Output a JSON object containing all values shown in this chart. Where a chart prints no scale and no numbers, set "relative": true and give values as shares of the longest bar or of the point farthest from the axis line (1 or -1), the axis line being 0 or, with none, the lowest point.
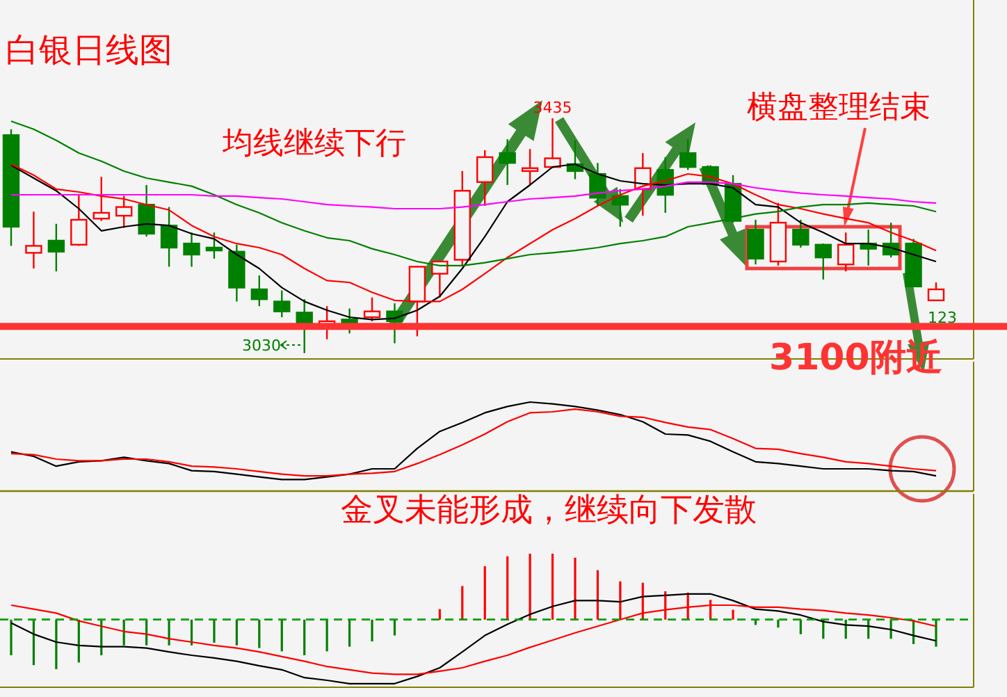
{
  "chart_data": [
    {
      "type": "candlestick",
      "title": "白银日线图",
      "ylim": [
        3020,
        3639
      ],
      "categories": [
        null,
        null,
        null,
        null,
        null,
        null,
        null,
        null,
        null,
        null,
        null,
        null,
        null,
        null,
        null,
        null,
        null,
        null,
        null,
        null,
        null,
        null,
        null,
        null,
        null,
        null,
        null,
        null,
        null,
        null,
        null,
        null,
        null,
        null,
        null,
        null,
        null,
        null,
        null,
        null,
        null,
        null
      ],
      "ohlc": [
        [
          3406,
          3416,
          3215,
          3248
        ],
        [
          3203,
          3274,
          3176,
          3215
        ],
        [
          3224,
          3253,
          3171,
          3205
        ],
        [
          3217,
          3303,
          3215,
          3260
        ],
        [
          3262,
          3334,
          3258,
          3272
        ],
        [
          3267,
          3301,
          3246,
          3282
        ],
        [
          3286,
          3320,
          3231,
          3236
        ],
        [
          3250,
          3282,
          3179,
          3212
        ],
        [
          3219,
          3238,
          3179,
          3200
        ],
        [
          3212,
          3238,
          3193,
          3207
        ],
        [
          3205,
          3217,
          3119,
          3143
        ],
        [
          3140,
          3164,
          3111,
          3123
        ],
        [
          3119,
          3138,
          3092,
          3102
        ],
        [
          3100,
          3123,
          3030,
          3080
        ],
        [
          3080,
          3111,
          3054,
          3085
        ],
        [
          3088,
          3107,
          3064,
          3080
        ],
        [
          3092,
          3126,
          3085,
          3102
        ],
        [
          3102,
          3116,
          3047,
          3085
        ],
        [
          3119,
          3179,
          3059,
          3179
        ],
        [
          3167,
          3188,
          3126,
          3188
        ],
        [
          3191,
          3344,
          3181,
          3310
        ],
        [
          3325,
          3380,
          3284,
          3368
        ],
        [
          3375,
          3399,
          3320,
          3358
        ],
        [
          3344,
          3382,
          3320,
          3349
        ],
        [
          3351,
          3435,
          3349,
          3366
        ],
        [
          3356,
          3397,
          3330,
          3344
        ],
        [
          3339,
          3358,
          3284,
          3298
        ],
        [
          3301,
          3313,
          3248,
          3286
        ],
        [
          3313,
          3375,
          3267,
          3349
        ],
        [
          3346,
          3368,
          3272,
          3303
        ],
        [
          3375,
          3399,
          3346,
          3351
        ],
        [
          3351,
          3354,
          3320,
          3322
        ],
        [
          3322,
          3337,
          3255,
          3258
        ],
        [
          3243,
          3260,
          3183,
          3193
        ],
        [
          3188,
          3289,
          3181,
          3255
        ],
        [
          3243,
          3260,
          3212,
          3217
        ],
        [
          3217,
          3219,
          3157,
          3195
        ],
        [
          3183,
          3238,
          3171,
          3217
        ],
        [
          3219,
          3243,
          3181,
          3210
        ],
        [
          3219,
          3255,
          3195,
          3200
        ],
        [
          3219,
          3227,
          3145,
          3145
        ],
        [
          3121,
          3152,
          3121,
          3140
        ]
      ],
      "series": [
        {
          "type": "line",
          "color": "#000000",
          "values": [
            3354,
            3332,
            3310,
            3279,
            3241,
            3248,
            3253,
            3250,
            3236,
            3227,
            3200,
            3176,
            3143,
            3119,
            3104,
            3092,
            3088,
            3090,
            3104,
            3128,
            3176,
            3231,
            3291,
            3320,
            3351,
            3356,
            3339,
            3327,
            3322,
            3320,
            3322,
            3322,
            3315,
            3286,
            3282,
            3255,
            3238,
            3219,
            3219,
            3212,
            3200,
            3188
          ]
        },
        {
          "type": "line",
          "color": "#ff0000",
          "values": [
            3356,
            3337,
            3313,
            3308,
            3301,
            3296,
            3286,
            3277,
            3250,
            3231,
            3219,
            3212,
            3200,
            3176,
            3155,
            3152,
            3135,
            3121,
            3119,
            3119,
            3140,
            3167,
            3195,
            3219,
            3243,
            3262,
            3284,
            3303,
            3318,
            3327,
            3339,
            3334,
            3322,
            3303,
            3286,
            3279,
            3270,
            3262,
            3255,
            3238,
            3224,
            3207
          ]
        },
        {
          "type": "line",
          "color": "#008000",
          "values": [
            3430,
            3416,
            3397,
            3375,
            3361,
            3344,
            3332,
            3325,
            3318,
            3303,
            3286,
            3272,
            3255,
            3241,
            3229,
            3224,
            3210,
            3200,
            3188,
            3181,
            3181,
            3186,
            3193,
            3200,
            3203,
            3207,
            3212,
            3219,
            3224,
            3231,
            3248,
            3255,
            3262,
            3270,
            3274,
            3282,
            3286,
            3286,
            3289,
            3286,
            3284,
            3274
          ]
        },
        {
          "type": "line",
          "color": "#ff00ff",
          "values": [
            3303,
            3303,
            3303,
            3303,
            3303,
            3303,
            3303,
            3303,
            3303,
            3301,
            3301,
            3298,
            3296,
            3291,
            3286,
            3284,
            3282,
            3279,
            3279,
            3279,
            3282,
            3286,
            3291,
            3296,
            3298,
            3301,
            3306,
            3310,
            3313,
            3318,
            3325,
            3325,
            3322,
            3315,
            3310,
            3306,
            3303,
            3301,
            3298,
            3296,
            3291,
            3289
          ]
        }
      ],
      "ref_lines": [
        {
          "axis": "y",
          "value": 3076,
          "label": "3100附近",
          "color": "#ff3333"
        }
      ],
      "annotations": [
        "均线继续下行",
        "横盘整理结束",
        {
          "text": "3435",
          "y": 3435
        },
        "3030",
        "123"
      ]
    },
    {
      "type": "line",
      "relative": true,
      "categories": [
        null,
        null,
        null,
        null,
        null,
        null,
        null,
        null,
        null,
        null,
        null,
        null,
        null,
        null,
        null,
        null,
        null,
        null,
        null,
        null,
        null,
        null,
        null,
        null,
        null,
        null,
        null,
        null,
        null,
        null,
        null,
        null,
        null,
        null,
        null,
        null,
        null,
        null,
        null,
        null,
        null,
        null
      ],
      "series": [
        {
          "color": "#000000",
          "values": [
            0.44,
            0.39,
            0.28,
            0.33,
            0.34,
            0.38,
            0.34,
            0.31,
            0.23,
            0.22,
            0.19,
            0.16,
            0.13,
            0.13,
            0.16,
            0.19,
            0.25,
            0.25,
            0.48,
            0.67,
            0.77,
            0.88,
            0.95,
            1,
            0.98,
            0.95,
            0.91,
            0.86,
            0.78,
            0.64,
            0.63,
            0.56,
            0.44,
            0.33,
            0.31,
            0.28,
            0.25,
            0.25,
            0.25,
            0.23,
            0.22,
            0.17
          ]
        },
        {
          "color": "#ff0000",
          "values": [
            0.42,
            0.41,
            0.36,
            0.34,
            0.34,
            0.36,
            0.36,
            0.33,
            0.28,
            0.27,
            0.25,
            0.22,
            0.19,
            0.17,
            0.17,
            0.19,
            0.2,
            0.22,
            0.31,
            0.41,
            0.52,
            0.64,
            0.78,
            0.88,
            0.89,
            0.92,
            0.89,
            0.84,
            0.83,
            0.77,
            0.72,
            0.69,
            0.59,
            0.48,
            0.47,
            0.42,
            0.38,
            0.33,
            0.31,
            0.28,
            0.25,
            0.23
          ]
        }
      ],
      "annotations": [
        "金叉未能形成，继续向下发散"
      ]
    },
    {
      "type": "bar",
      "relative": true,
      "ref_lines": [
        {
          "axis": "y",
          "value": 0,
          "color": "#00a000",
          "line_style": "dashed"
        }
      ],
      "categories": [
        null,
        null,
        null,
        null,
        null,
        null,
        null,
        null,
        null,
        null,
        null,
        null,
        null,
        null,
        null,
        null,
        null,
        null,
        null,
        null,
        null,
        null,
        null,
        null,
        null,
        null,
        null,
        null,
        null,
        null,
        null,
        null,
        null,
        null,
        null,
        null,
        null,
        null,
        null,
        null,
        null,
        null
      ],
      "series": [
        {
          "type": "bar",
          "values": [
            -0.54,
            -0.69,
            -0.75,
            -0.65,
            -0.54,
            -0.39,
            -0.39,
            -0.39,
            -0.39,
            -0.35,
            -0.39,
            -0.43,
            -0.48,
            -0.54,
            -0.48,
            -0.41,
            -0.33,
            -0.24,
            0,
            0.16,
            0.51,
            0.81,
            0.96,
            1,
            1,
            0.94,
            0.75,
            0.58,
            0.56,
            0.43,
            0.41,
            0.3,
            0.15,
            -0.08,
            -0.12,
            -0.22,
            -0.29,
            -0.29,
            -0.29,
            -0.29,
            -0.37,
            -0.41
          ],
          "colors": [
            "#008000",
            "#008000",
            "#008000",
            "#008000",
            "#008000",
            "#008000",
            "#008000",
            "#008000",
            "#008000",
            "#008000",
            "#008000",
            "#008000",
            "#008000",
            "#008000",
            "#008000",
            "#008000",
            "#008000",
            "#008000",
            "#008000",
            "#ff0000",
            "#ff0000",
            "#ff0000",
            "#ff0000",
            "#ff0000",
            "#ff0000",
            "#ff0000",
            "#ff0000",
            "#ff0000",
            "#ff0000",
            "#ff0000",
            "#ff0000",
            "#ff0000",
            "#ff0000",
            "#008000",
            "#008000",
            "#008000",
            "#008000",
            "#008000",
            "#008000",
            "#008000",
            "#008000",
            "#008000"
          ]
        },
        {
          "type": "line",
          "color": "#000000",
          "values": [
            -0.05,
            -0.22,
            -0.34,
            -0.39,
            -0.41,
            -0.41,
            -0.43,
            -0.49,
            -0.54,
            -0.58,
            -0.63,
            -0.7,
            -0.76,
            -0.88,
            -0.92,
            -0.97,
            -0.97,
            -0.97,
            -0.86,
            -0.73,
            -0.49,
            -0.24,
            -0.07,
            0.08,
            0.2,
            0.29,
            0.29,
            0.27,
            0.35,
            0.37,
            0.39,
            0.39,
            0.29,
            0.16,
            0.13,
            0.07,
            -0.03,
            -0.08,
            -0.1,
            -0.15,
            -0.24,
            -0.32
          ]
        },
        {
          "type": "line",
          "color": "#ff0000",
          "values": [
            0.22,
            0.16,
            0.1,
            -0.02,
            -0.1,
            -0.18,
            -0.22,
            -0.29,
            -0.34,
            -0.39,
            -0.43,
            -0.49,
            -0.56,
            -0.63,
            -0.71,
            -0.76,
            -0.81,
            -0.83,
            -0.83,
            -0.78,
            -0.73,
            -0.63,
            -0.54,
            -0.42,
            -0.31,
            -0.2,
            -0.1,
            0,
            0.1,
            0.15,
            0.19,
            0.22,
            0.22,
            0.19,
            0.19,
            0.16,
            0.14,
            0.1,
            0.07,
            0.03,
            -0.02,
            -0.1
          ]
        }
      ]
    }
  ]
}
